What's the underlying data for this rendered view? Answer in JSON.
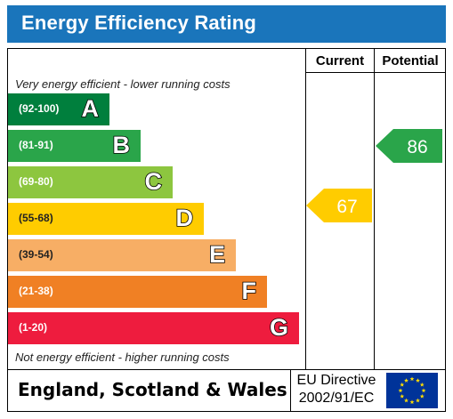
{
  "title": "Energy Efficiency Rating",
  "columns": {
    "current": "Current",
    "potential": "Potential"
  },
  "notes": {
    "top": "Very energy efficient - lower running costs",
    "bottom": "Not energy efficient - higher running costs"
  },
  "bands": [
    {
      "range": "(92-100)",
      "letter": "A",
      "color": "#007f3d"
    },
    {
      "range": "(81-91)",
      "letter": "B",
      "color": "#2aa54a"
    },
    {
      "range": "(69-80)",
      "letter": "C",
      "color": "#8dc63f"
    },
    {
      "range": "(55-68)",
      "letter": "D",
      "color": "#ffcc00"
    },
    {
      "range": "(39-54)",
      "letter": "E",
      "color": "#f7ae65"
    },
    {
      "range": "(21-38)",
      "letter": "F",
      "color": "#f08024"
    },
    {
      "range": "(1-20)",
      "letter": "G",
      "color": "#ee1c3e"
    }
  ],
  "current": {
    "value": "67",
    "color": "#ffcc00"
  },
  "potential": {
    "value": "86",
    "color": "#2aa54a"
  },
  "footer": {
    "country": "England, Scotland & Wales",
    "directive_line1": "EU Directive",
    "directive_line2": "2002/91/EC"
  },
  "colors": {
    "title_bar": "#1a75bb",
    "eu_flag": "#003399",
    "eu_stars": "#ffdd00"
  }
}
